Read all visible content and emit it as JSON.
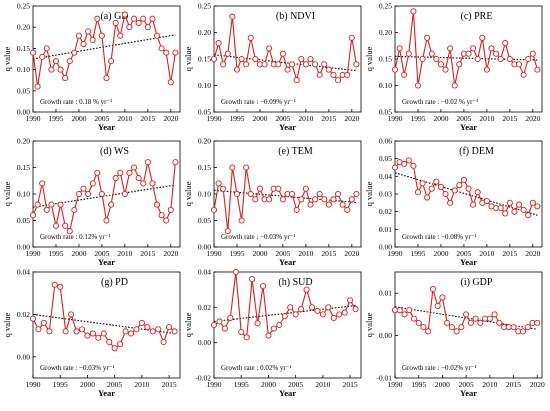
{
  "figure": {
    "ylabel": "q value",
    "xlabel": "Year",
    "colors": {
      "series": "#d62020",
      "marker_fill": "#ffffff",
      "trend": "#000000",
      "axis": "#000000"
    }
  },
  "chart_data": [
    {
      "type": "line",
      "title": "(a) GD",
      "growth_label": "Growth rate : 0.18 % yr⁻¹",
      "xlabel": "Year",
      "ylabel": "q value",
      "xlim": [
        1990,
        2022
      ],
      "xticks": [
        1990,
        1995,
        2000,
        2005,
        2010,
        2015,
        2020
      ],
      "ylim": [
        0,
        0.25
      ],
      "yticks": [
        0.0,
        0.05,
        0.1,
        0.15,
        0.2,
        0.25
      ],
      "x": [
        1990,
        1991,
        1992,
        1993,
        1994,
        1995,
        1996,
        1997,
        1998,
        1999,
        2000,
        2001,
        2002,
        2003,
        2004,
        2005,
        2006,
        2007,
        2008,
        2009,
        2010,
        2011,
        2012,
        2013,
        2014,
        2015,
        2016,
        2017,
        2018,
        2019,
        2020,
        2021
      ],
      "values": [
        0.14,
        0.06,
        0.13,
        0.15,
        0.1,
        0.12,
        0.1,
        0.08,
        0.12,
        0.14,
        0.18,
        0.16,
        0.19,
        0.17,
        0.22,
        0.18,
        0.08,
        0.12,
        0.21,
        0.18,
        0.23,
        0.2,
        0.22,
        0.21,
        0.22,
        0.2,
        0.22,
        0.18,
        0.15,
        0.14,
        0.07,
        0.14
      ],
      "trend": [
        0.125,
        0.182
      ]
    },
    {
      "type": "line",
      "title": "(b) NDVI",
      "growth_label": "Growth rate : −0.09% yr⁻¹",
      "xlabel": "Year",
      "ylabel": "q value",
      "xlim": [
        1990,
        2022
      ],
      "xticks": [
        1990,
        1995,
        2000,
        2005,
        2010,
        2015,
        2020
      ],
      "ylim": [
        0.05,
        0.25
      ],
      "yticks": [
        0.05,
        0.1,
        0.15,
        0.2,
        0.25
      ],
      "x": [
        1990,
        1991,
        1992,
        1993,
        1994,
        1995,
        1996,
        1997,
        1998,
        1999,
        2000,
        2001,
        2002,
        2003,
        2004,
        2005,
        2006,
        2007,
        2008,
        2009,
        2010,
        2011,
        2012,
        2013,
        2014,
        2015,
        2016,
        2017,
        2018,
        2019,
        2020,
        2021
      ],
      "values": [
        0.15,
        0.18,
        0.14,
        0.16,
        0.23,
        0.13,
        0.15,
        0.14,
        0.19,
        0.15,
        0.14,
        0.14,
        0.17,
        0.14,
        0.14,
        0.16,
        0.13,
        0.14,
        0.11,
        0.15,
        0.14,
        0.15,
        0.14,
        0.12,
        0.14,
        0.13,
        0.12,
        0.11,
        0.12,
        0.12,
        0.19,
        0.14
      ],
      "trend": [
        0.158,
        0.128
      ]
    },
    {
      "type": "line",
      "title": "(c) PRE",
      "growth_label": "Growth rate : −0.02 % yr⁻¹",
      "xlabel": "Year",
      "ylabel": "q value",
      "xlim": [
        1990,
        2022
      ],
      "xticks": [
        1990,
        1995,
        2000,
        2005,
        2010,
        2015,
        2020
      ],
      "ylim": [
        0.05,
        0.25
      ],
      "yticks": [
        0.05,
        0.1,
        0.15,
        0.2,
        0.25
      ],
      "x": [
        1990,
        1991,
        1992,
        1993,
        1994,
        1995,
        1996,
        1997,
        1998,
        1999,
        2000,
        2001,
        2002,
        2003,
        2004,
        2005,
        2006,
        2007,
        2008,
        2009,
        2010,
        2011,
        2012,
        2013,
        2014,
        2015,
        2016,
        2017,
        2018,
        2019,
        2020,
        2021
      ],
      "values": [
        0.13,
        0.17,
        0.12,
        0.16,
        0.24,
        0.1,
        0.15,
        0.19,
        0.16,
        0.15,
        0.14,
        0.13,
        0.17,
        0.1,
        0.14,
        0.16,
        0.16,
        0.17,
        0.15,
        0.19,
        0.13,
        0.17,
        0.16,
        0.15,
        0.18,
        0.15,
        0.14,
        0.14,
        0.12,
        0.15,
        0.16,
        0.13
      ],
      "trend": [
        0.155,
        0.148
      ]
    },
    {
      "type": "line",
      "title": "(d) WS",
      "growth_label": "Growth rate : 0.12% yr⁻¹",
      "xlabel": "Year",
      "ylabel": "q value",
      "xlim": [
        1990,
        2022
      ],
      "xticks": [
        1990,
        1995,
        2000,
        2005,
        2010,
        2015,
        2020
      ],
      "ylim": [
        0,
        0.2
      ],
      "yticks": [
        0.0,
        0.05,
        0.1,
        0.15,
        0.2
      ],
      "x": [
        1990,
        1991,
        1992,
        1993,
        1994,
        1995,
        1996,
        1997,
        1998,
        1999,
        2000,
        2001,
        2002,
        2003,
        2004,
        2005,
        2006,
        2007,
        2008,
        2009,
        2010,
        2011,
        2012,
        2013,
        2014,
        2015,
        2016,
        2017,
        2018,
        2019,
        2020,
        2021
      ],
      "values": [
        0.06,
        0.08,
        0.12,
        0.07,
        0.08,
        0.04,
        0.08,
        0.04,
        0.03,
        0.07,
        0.1,
        0.11,
        0.1,
        0.12,
        0.14,
        0.1,
        0.05,
        0.08,
        0.13,
        0.14,
        0.1,
        0.14,
        0.15,
        0.13,
        0.12,
        0.16,
        0.12,
        0.08,
        0.06,
        0.05,
        0.07,
        0.16
      ],
      "trend": [
        0.075,
        0.117
      ]
    },
    {
      "type": "line",
      "title": "(e) TEM",
      "growth_label": "Growth rate : −0.03% yr⁻¹",
      "xlabel": "Year",
      "ylabel": "q value",
      "xlim": [
        1990,
        2022
      ],
      "xticks": [
        1990,
        1995,
        2000,
        2005,
        2010,
        2015,
        2020
      ],
      "ylim": [
        0,
        0.2
      ],
      "yticks": [
        0.0,
        0.05,
        0.1,
        0.15,
        0.2
      ],
      "x": [
        1990,
        1991,
        1992,
        1993,
        1994,
        1995,
        1996,
        1997,
        1998,
        1999,
        2000,
        2001,
        2002,
        2003,
        2004,
        2005,
        2006,
        2007,
        2008,
        2009,
        2010,
        2011,
        2012,
        2013,
        2014,
        2015,
        2016,
        2017,
        2018,
        2019,
        2020,
        2021
      ],
      "values": [
        0.07,
        0.12,
        0.11,
        0.03,
        0.15,
        0.1,
        0.05,
        0.15,
        0.1,
        0.09,
        0.11,
        0.09,
        0.09,
        0.11,
        0.11,
        0.09,
        0.1,
        0.1,
        0.07,
        0.09,
        0.11,
        0.08,
        0.09,
        0.1,
        0.09,
        0.08,
        0.09,
        0.1,
        0.08,
        0.07,
        0.09,
        0.1
      ],
      "trend": [
        0.107,
        0.084
      ]
    },
    {
      "type": "line",
      "title": "(f) DEM",
      "growth_label": "Growth rate : −0.08% yr⁻¹",
      "xlabel": "Year",
      "ylabel": "q value",
      "xlim": [
        1990,
        2022
      ],
      "xticks": [
        1990,
        1995,
        2000,
        2005,
        2010,
        2015,
        2020
      ],
      "ylim": [
        0,
        0.06
      ],
      "yticks": [
        0.0,
        0.01,
        0.02,
        0.03,
        0.04,
        0.05,
        0.06
      ],
      "x": [
        1990,
        1991,
        1992,
        1993,
        1994,
        1995,
        1996,
        1997,
        1998,
        1999,
        2000,
        2001,
        2002,
        2003,
        2004,
        2005,
        2006,
        2007,
        2008,
        2009,
        2010,
        2011,
        2012,
        2013,
        2014,
        2015,
        2016,
        2017,
        2018,
        2019,
        2020,
        2021
      ],
      "values": [
        0.045,
        0.048,
        0.047,
        0.049,
        0.046,
        0.031,
        0.036,
        0.028,
        0.033,
        0.037,
        0.034,
        0.03,
        0.025,
        0.032,
        0.035,
        0.038,
        0.033,
        0.024,
        0.031,
        0.025,
        0.026,
        0.023,
        0.022,
        0.022,
        0.019,
        0.025,
        0.02,
        0.024,
        0.021,
        0.018,
        0.025,
        0.023
      ],
      "trend": [
        0.042,
        0.018
      ]
    },
    {
      "type": "line",
      "title": "(g) PD",
      "growth_label": "Growth rate : −0.03% yr⁻¹",
      "xlabel": "Year",
      "ylabel": "q value",
      "xlim": [
        1990,
        2017
      ],
      "xticks": [
        1990,
        1995,
        2000,
        2005,
        2010,
        2015
      ],
      "ylim": [
        -0.01,
        0.04
      ],
      "yticks": [
        0.0,
        0.02,
        0.04
      ],
      "x": [
        1990,
        1991,
        1992,
        1993,
        1994,
        1995,
        1996,
        1997,
        1998,
        1999,
        2000,
        2001,
        2002,
        2003,
        2004,
        2005,
        2006,
        2007,
        2008,
        2009,
        2010,
        2011,
        2012,
        2013,
        2014,
        2015,
        2016
      ],
      "values": [
        0.018,
        0.013,
        0.016,
        0.012,
        0.034,
        0.033,
        0.012,
        0.02,
        0.012,
        0.013,
        0.01,
        0.011,
        0.009,
        0.011,
        0.007,
        0.004,
        0.006,
        0.012,
        0.011,
        0.013,
        0.016,
        0.014,
        0.012,
        0.013,
        0.007,
        0.014,
        0.012
      ],
      "trend": [
        0.02,
        0.011
      ]
    },
    {
      "type": "line",
      "title": "(h) SUD",
      "growth_label": "Growth rate : 0.02% yr⁻¹",
      "xlabel": "Year",
      "ylabel": "q value",
      "xlim": [
        1990,
        2017
      ],
      "xticks": [
        1990,
        1995,
        2000,
        2005,
        2010,
        2015
      ],
      "ylim": [
        -0.02,
        0.04
      ],
      "yticks": [
        -0.02,
        0.0,
        0.02,
        0.04
      ],
      "x": [
        1990,
        1991,
        1992,
        1993,
        1994,
        1995,
        1996,
        1997,
        1998,
        1999,
        2000,
        2001,
        2002,
        2003,
        2004,
        2005,
        2006,
        2007,
        2008,
        2009,
        2010,
        2011,
        2012,
        2013,
        2014,
        2015,
        2016
      ],
      "values": [
        0.01,
        0.012,
        0.008,
        0.014,
        0.04,
        0.006,
        0.003,
        0.036,
        0.011,
        0.032,
        0.004,
        0.008,
        0.01,
        0.015,
        0.02,
        0.016,
        0.019,
        0.03,
        0.02,
        0.018,
        0.016,
        0.02,
        0.014,
        0.016,
        0.017,
        0.024,
        0.019
      ],
      "trend": [
        0.012,
        0.021
      ]
    },
    {
      "type": "line",
      "title": "(i) GDP",
      "growth_label": "Growth rate : −0.02% yr⁻¹",
      "xlabel": "Year",
      "ylabel": "q value",
      "xlim": [
        1990,
        2021
      ],
      "xticks": [
        1990,
        1995,
        2000,
        2005,
        2010,
        2015,
        2020
      ],
      "ylim": [
        -0.01,
        0.015
      ],
      "yticks": [
        -0.01,
        0.0,
        0.01
      ],
      "x": [
        1990,
        1991,
        1992,
        1993,
        1994,
        1995,
        1996,
        1997,
        1998,
        1999,
        2000,
        2001,
        2002,
        2003,
        2004,
        2005,
        2006,
        2007,
        2008,
        2009,
        2010,
        2011,
        2012,
        2013,
        2014,
        2015,
        2016,
        2017,
        2018,
        2019,
        2020
      ],
      "values": [
        0.006,
        0.006,
        0.005,
        0.006,
        0.004,
        0.003,
        0.002,
        0.001,
        0.011,
        0.007,
        0.009,
        0.003,
        0.002,
        0.001,
        0.002,
        0.005,
        0.003,
        0.004,
        0.003,
        0.004,
        0.004,
        0.005,
        0.003,
        0.002,
        0.002,
        0.002,
        0.001,
        0.001,
        0.002,
        0.003,
        0.003
      ],
      "trend": [
        0.0068,
        0.0015
      ]
    }
  ]
}
